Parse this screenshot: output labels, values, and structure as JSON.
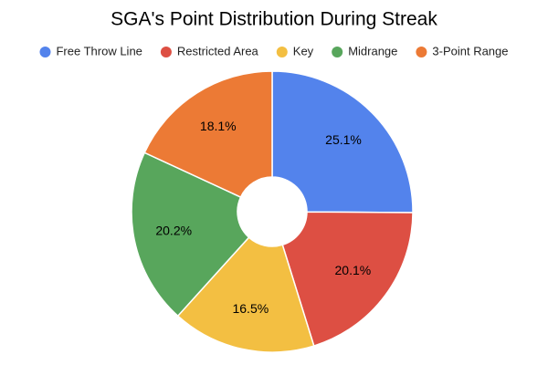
{
  "chart_data": {
    "type": "donut",
    "title": "SGA's Point Distribution During Streak",
    "categories": [
      "Free Throw Line",
      "Restricted Area",
      "Key",
      "Midrange",
      "3-Point Range"
    ],
    "values": [
      25.1,
      20.1,
      16.5,
      20.2,
      18.1
    ],
    "value_labels": [
      "25.1%",
      "20.1%",
      "16.5%",
      "20.2%",
      "18.1%"
    ],
    "colors": [
      "#5383ec",
      "#dd4f43",
      "#f3bf42",
      "#58a65c",
      "#ec7a35"
    ],
    "legend": "top"
  }
}
